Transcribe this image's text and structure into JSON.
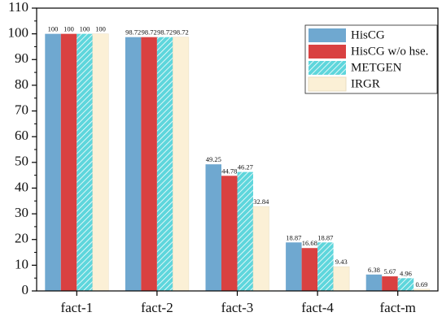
{
  "chart_data": {
    "type": "bar",
    "categories": [
      "fact-1",
      "fact-2",
      "fact-3",
      "fact-4",
      "fact-m"
    ],
    "series": [
      {
        "name": "HisCG",
        "color": "#6fa8d0",
        "values": [
          100,
          98.72,
          49.25,
          18.87,
          6.38
        ]
      },
      {
        "name": "HisCG w/o hse.",
        "color": "#d94141",
        "values": [
          100,
          98.72,
          44.78,
          16.68,
          5.67
        ]
      },
      {
        "name": "METGEN",
        "color": "#5ed6dc",
        "hatch": true,
        "values": [
          100,
          98.72,
          46.27,
          18.87,
          4.96
        ]
      },
      {
        "name": "IRGR",
        "color": "#fbf0d6",
        "values": [
          100,
          98.72,
          32.84,
          9.43,
          0.69
        ]
      }
    ],
    "ylim": [
      0,
      110
    ],
    "yticks": [
      0,
      10,
      20,
      30,
      40,
      50,
      60,
      70,
      80,
      90,
      100,
      110
    ],
    "legend": "upper right"
  }
}
